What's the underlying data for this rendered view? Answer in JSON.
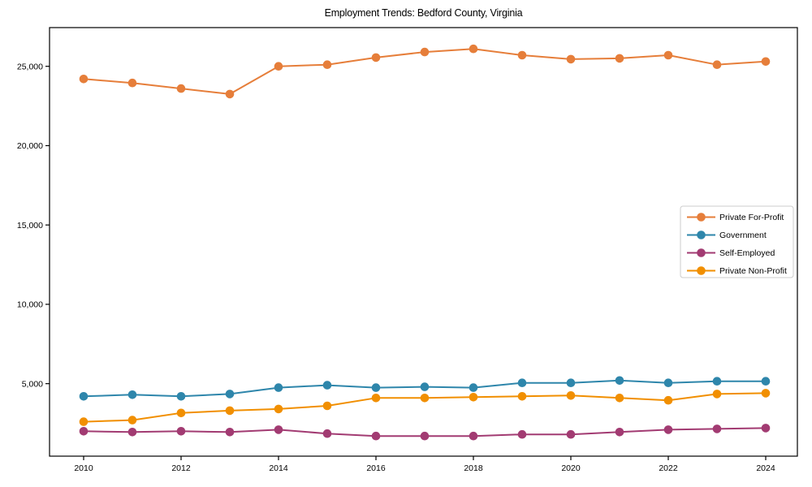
{
  "chart_data": {
    "type": "line",
    "title": "Employment Trends: Bedford County, Virginia",
    "xlabel": "",
    "ylabel": "",
    "grid": false,
    "legend_position": "center right",
    "x": [
      2010,
      2011,
      2012,
      2013,
      2014,
      2015,
      2016,
      2017,
      2018,
      2019,
      2020,
      2021,
      2022,
      2023,
      2024
    ],
    "x_ticks": [
      2010,
      2012,
      2014,
      2016,
      2018,
      2020,
      2022,
      2024
    ],
    "x_tick_labels": [
      "2010",
      "2012",
      "2014",
      "2016",
      "2018",
      "2020",
      "2022",
      "2024"
    ],
    "y_ticks": [
      5000,
      10000,
      15000,
      20000,
      25000
    ],
    "y_tick_labels": [
      "5,000",
      "10,000",
      "15,000",
      "20,000",
      "25,000"
    ],
    "xlim": [
      2009.3,
      2024.65
    ],
    "ylim": [
      430,
      27440
    ],
    "series": [
      {
        "name": "Private For-Profit",
        "color": "#E67E3A",
        "values": [
          24200,
          23950,
          23600,
          23250,
          25000,
          25100,
          25550,
          25900,
          26100,
          25700,
          25450,
          25500,
          25700,
          25100,
          25300
        ]
      },
      {
        "name": "Government",
        "color": "#2E86AB",
        "values": [
          4200,
          4300,
          4200,
          4350,
          4750,
          4900,
          4750,
          4800,
          4750,
          5050,
          5050,
          5200,
          5050,
          5150,
          5150
        ]
      },
      {
        "name": "Self-Employed",
        "color": "#A23B72",
        "values": [
          2000,
          1950,
          2000,
          1950,
          2100,
          1850,
          1700,
          1700,
          1700,
          1800,
          1800,
          1950,
          2100,
          2150,
          2200
        ]
      },
      {
        "name": "Private Non-Profit",
        "color": "#F18F01",
        "values": [
          2600,
          2700,
          3150,
          3300,
          3400,
          3600,
          4100,
          4100,
          4150,
          4200,
          4250,
          4100,
          3950,
          4350,
          4400
        ]
      }
    ],
    "style": {
      "frame_color": "#000000",
      "background": "#ffffff",
      "legend_border_color": "#cccccc",
      "legend_background": "#ffffff",
      "line_width": 2,
      "marker_radius": 5.3
    }
  }
}
